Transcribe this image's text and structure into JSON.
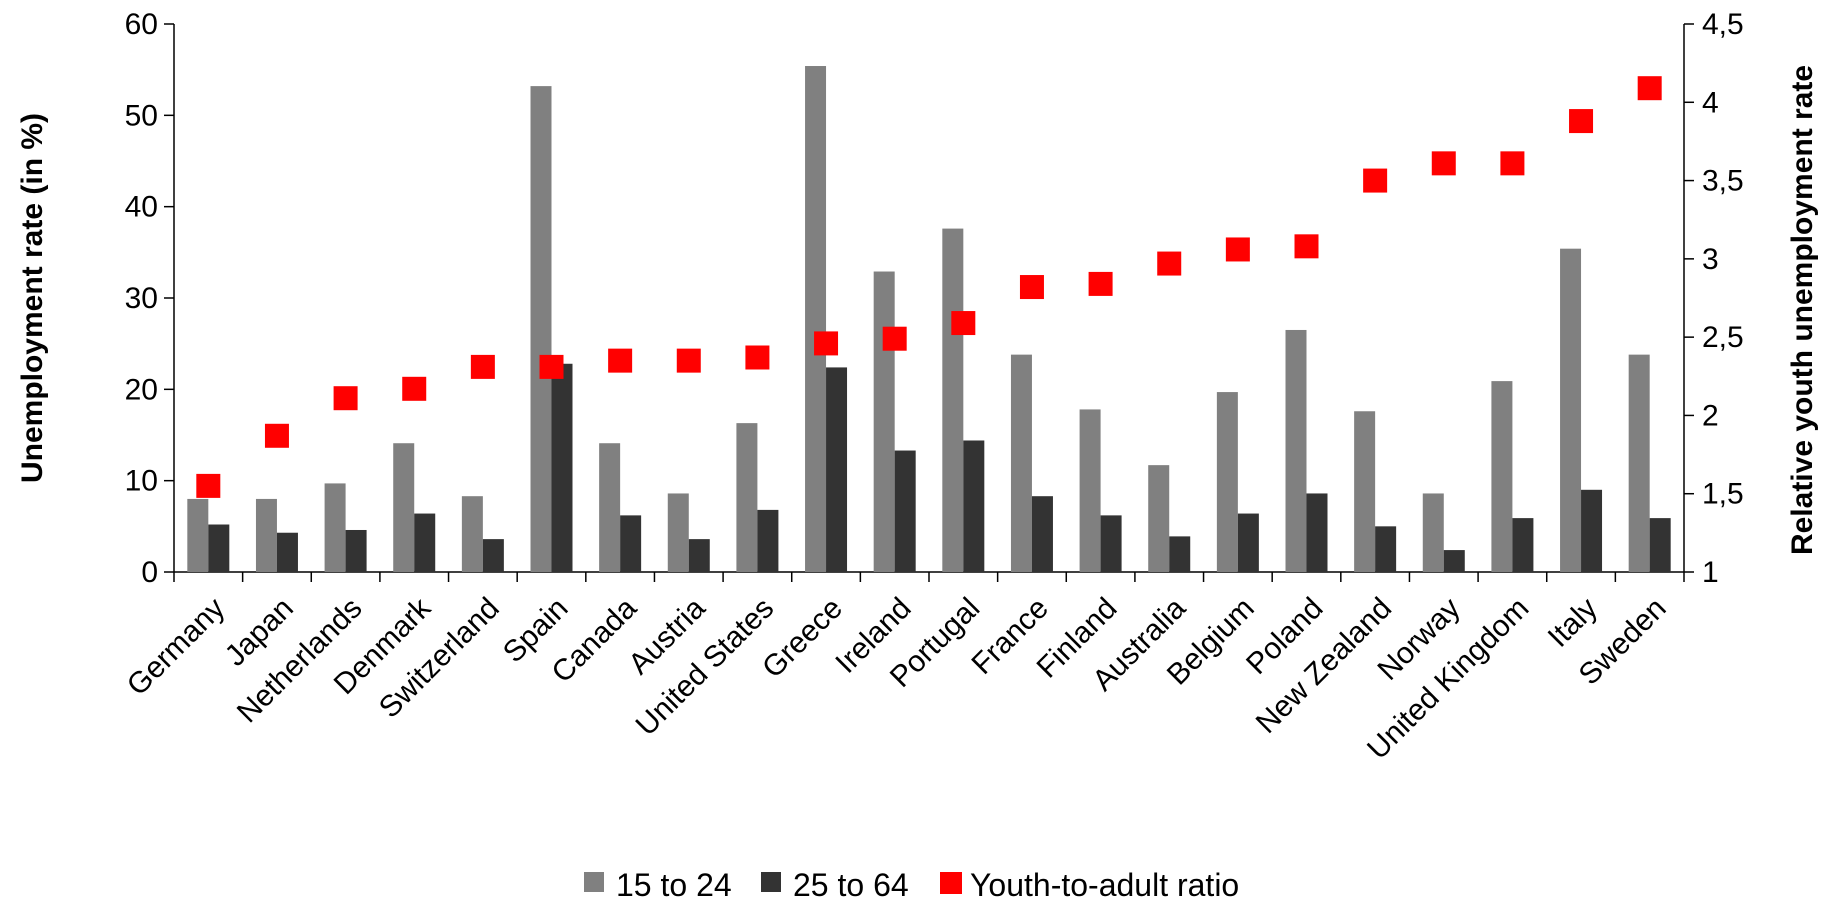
{
  "chart_data": {
    "type": "bar",
    "title": "",
    "ylabel": "Unemployment rate (in %)",
    "y2label": "Relative youth unemployment rate",
    "ylim": [
      0,
      60
    ],
    "y2lim": [
      1,
      4.5
    ],
    "yticks": [
      "0",
      "10",
      "20",
      "30",
      "40",
      "50",
      "60"
    ],
    "y2ticks": [
      "1",
      "1,5",
      "2",
      "2,5",
      "3",
      "3,5",
      "4",
      "4,5"
    ],
    "grid": false,
    "legend_position": "bottom",
    "categories": [
      "Germany",
      "Japan",
      "Netherlands",
      "Denmark",
      "Switzerland",
      "Spain",
      "Canada",
      "Austria",
      "United States",
      "Greece",
      "Ireland",
      "Portugal",
      "France",
      "Finland",
      "Australia",
      "Belgium",
      "Poland",
      "New Zealand",
      "Norway",
      "United Kingdom",
      "Italy",
      "Sweden"
    ],
    "series": [
      {
        "name": "15 to 24",
        "type": "bar",
        "axis": "left",
        "color": "#808080",
        "values": [
          8.0,
          8.0,
          9.7,
          14.1,
          8.3,
          53.2,
          14.1,
          8.6,
          16.3,
          55.4,
          32.9,
          37.6,
          23.8,
          17.8,
          11.7,
          19.7,
          26.5,
          17.6,
          8.6,
          20.9,
          35.4,
          23.8
        ]
      },
      {
        "name": "25 to 64",
        "type": "bar",
        "axis": "left",
        "color": "#333333",
        "values": [
          5.2,
          4.3,
          4.6,
          6.4,
          3.6,
          22.8,
          6.2,
          3.6,
          6.8,
          22.4,
          13.3,
          14.4,
          8.3,
          6.2,
          3.9,
          6.4,
          8.6,
          5.0,
          2.4,
          5.9,
          9.0,
          5.9
        ]
      },
      {
        "name": "Youth-to-adult ratio",
        "type": "scatter",
        "axis": "right",
        "color": "#ff0000",
        "values": [
          1.55,
          1.87,
          2.11,
          2.17,
          2.31,
          2.31,
          2.35,
          2.35,
          2.37,
          2.46,
          2.49,
          2.59,
          2.82,
          2.84,
          2.97,
          3.06,
          3.08,
          3.5,
          3.61,
          3.61,
          3.88,
          4.09
        ]
      }
    ]
  }
}
